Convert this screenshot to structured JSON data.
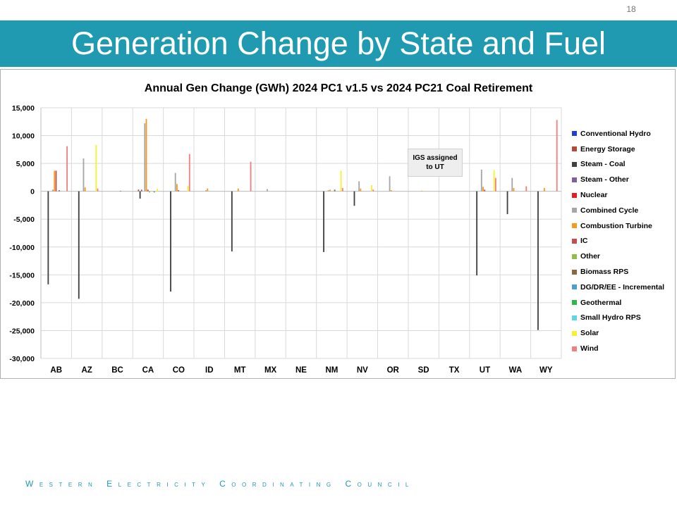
{
  "slide": {
    "page_number": "18",
    "title": "Generation Change by State and Fuel",
    "footer": "Western Electricity Coordinating Council",
    "colors": {
      "title_bar": "#1f9ab0",
      "footer_text": "#1f9ab0"
    }
  },
  "chart_data": {
    "type": "bar",
    "title": "Annual Gen Change (GWh) 2024 PC1 v1.5 vs 2024 PC21 Coal Retirement",
    "ylim": [
      -30000,
      15000
    ],
    "yticks": [
      15000,
      10000,
      5000,
      0,
      -5000,
      -10000,
      -15000,
      -20000,
      -25000,
      -30000
    ],
    "ytick_labels": [
      "15,000",
      "10,000",
      "5,000",
      "0",
      "-5,000",
      "-10,000",
      "-15,000",
      "-20,000",
      "-25,000",
      "-30,000"
    ],
    "grid": true,
    "legend_position": "right",
    "annotation": {
      "text_lines": [
        "IGS assigned",
        "to UT"
      ]
    },
    "categories": [
      "AB",
      "AZ",
      "BC",
      "CA",
      "CO",
      "ID",
      "MT",
      "MX",
      "NE",
      "NM",
      "NV",
      "OR",
      "SD",
      "TX",
      "UT",
      "WA",
      "WY"
    ],
    "series": [
      {
        "name": "Conventional Hydro",
        "color": "#1f3fd0",
        "values": [
          0,
          0,
          0,
          0,
          0,
          0,
          0,
          0,
          0,
          0,
          0,
          0,
          0,
          0,
          0,
          0,
          0
        ]
      },
      {
        "name": "Energy Storage",
        "color": "#b24a3c",
        "values": [
          0,
          0,
          0,
          300,
          0,
          0,
          0,
          0,
          0,
          0,
          0,
          0,
          0,
          0,
          0,
          0,
          0
        ]
      },
      {
        "name": "Steam - Coal",
        "color": "#404040",
        "values": [
          -16700,
          -19300,
          0,
          -1300,
          -18000,
          0,
          -10800,
          0,
          0,
          -10900,
          -2600,
          0,
          0,
          0,
          -15100,
          -4100,
          -24900
        ]
      },
      {
        "name": "Steam - Other",
        "color": "#7f5fa0",
        "values": [
          0,
          0,
          0,
          300,
          0,
          0,
          0,
          0,
          0,
          0,
          0,
          0,
          0,
          0,
          0,
          0,
          0
        ]
      },
      {
        "name": "Nuclear",
        "color": "#e02020",
        "values": [
          0,
          0,
          0,
          0,
          0,
          0,
          0,
          0,
          0,
          0,
          0,
          0,
          0,
          0,
          0,
          0,
          0
        ]
      },
      {
        "name": "Combined Cycle",
        "color": "#a6a6a6",
        "values": [
          300,
          5900,
          0,
          12200,
          3300,
          200,
          0,
          400,
          0,
          200,
          1800,
          2700,
          0,
          0,
          3900,
          2400,
          0
        ]
      },
      {
        "name": "Combustion Turbine",
        "color": "#f59a1b",
        "values": [
          3700,
          700,
          0,
          13000,
          1300,
          500,
          500,
          0,
          0,
          300,
          500,
          200,
          100,
          0,
          800,
          600,
          600
        ]
      },
      {
        "name": "IC",
        "color": "#c0504d",
        "values": [
          3700,
          0,
          0,
          300,
          200,
          0,
          0,
          0,
          0,
          0,
          0,
          0,
          0,
          0,
          300,
          0,
          0
        ]
      },
      {
        "name": "Other",
        "color": "#8fbe4a",
        "values": [
          0,
          0,
          0,
          -200,
          0,
          0,
          0,
          0,
          0,
          0,
          0,
          0,
          0,
          0,
          0,
          0,
          0
        ]
      },
      {
        "name": "Biomass RPS",
        "color": "#8b6842",
        "values": [
          200,
          0,
          100,
          0,
          0,
          0,
          0,
          0,
          0,
          300,
          0,
          0,
          0,
          0,
          0,
          0,
          0
        ]
      },
      {
        "name": "DG/DR/EE - Incremental",
        "color": "#4b9fd1",
        "values": [
          0,
          0,
          0,
          0,
          0,
          0,
          0,
          0,
          0,
          0,
          0,
          0,
          0,
          0,
          0,
          0,
          0
        ]
      },
      {
        "name": "Geothermal",
        "color": "#2fb84a",
        "values": [
          0,
          0,
          0,
          -200,
          0,
          0,
          0,
          0,
          0,
          0,
          0,
          0,
          0,
          0,
          0,
          0,
          0
        ]
      },
      {
        "name": "Small Hydro RPS",
        "color": "#5fd7e0",
        "values": [
          0,
          0,
          0,
          0,
          0,
          0,
          0,
          0,
          0,
          0,
          0,
          0,
          0,
          0,
          0,
          0,
          0
        ]
      },
      {
        "name": "Solar",
        "color": "#f8f032",
        "values": [
          0,
          8300,
          0,
          500,
          1000,
          0,
          0,
          0,
          0,
          3700,
          1100,
          0,
          0,
          0,
          3800,
          0,
          0
        ]
      },
      {
        "name": "Wind",
        "color": "#f07f7f",
        "values": [
          8100,
          500,
          0,
          0,
          6700,
          0,
          5300,
          0,
          0,
          600,
          300,
          0,
          0,
          0,
          2400,
          900,
          12800
        ]
      }
    ]
  }
}
